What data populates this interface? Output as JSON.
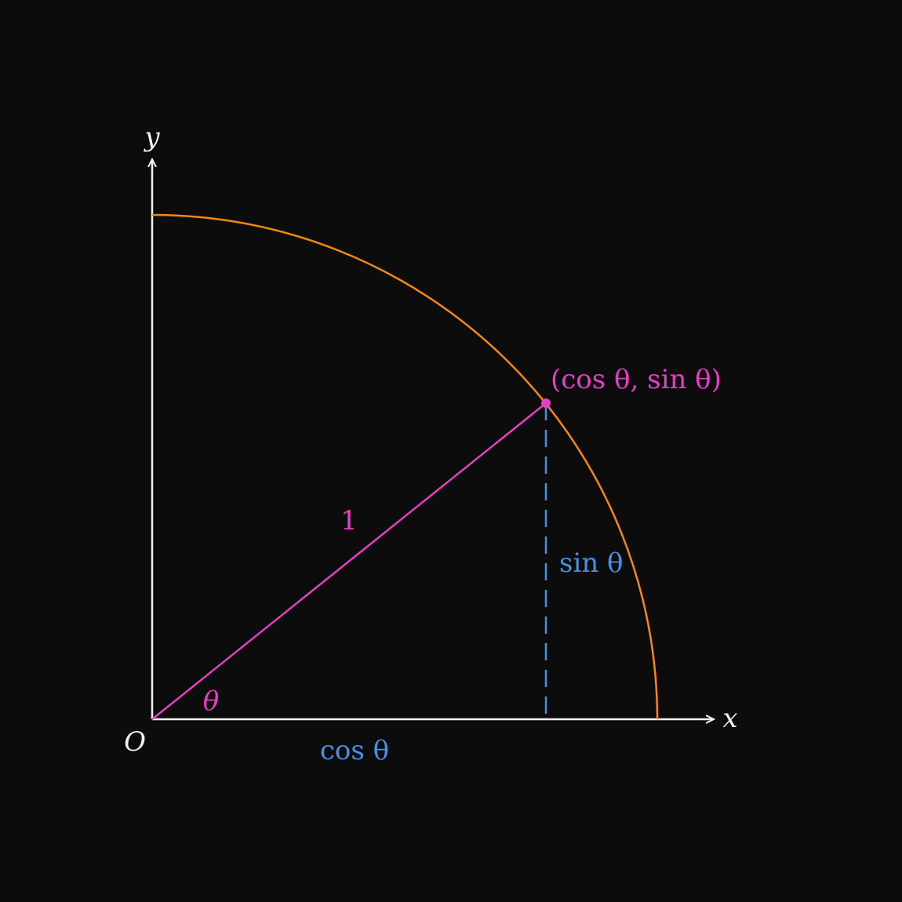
{
  "colors": {
    "background": "#0c0c0c",
    "axes": "#f2f2f2",
    "arc": "#f5880f",
    "radius": "#e53fc4",
    "projection": "#4a90e2"
  },
  "labels": {
    "x_axis": "x",
    "y_axis": "y",
    "origin": "O",
    "angle": "θ",
    "radius": "1",
    "sine": "sin θ",
    "cosine": "cos θ",
    "point": "(cos θ, sin θ)"
  }
}
